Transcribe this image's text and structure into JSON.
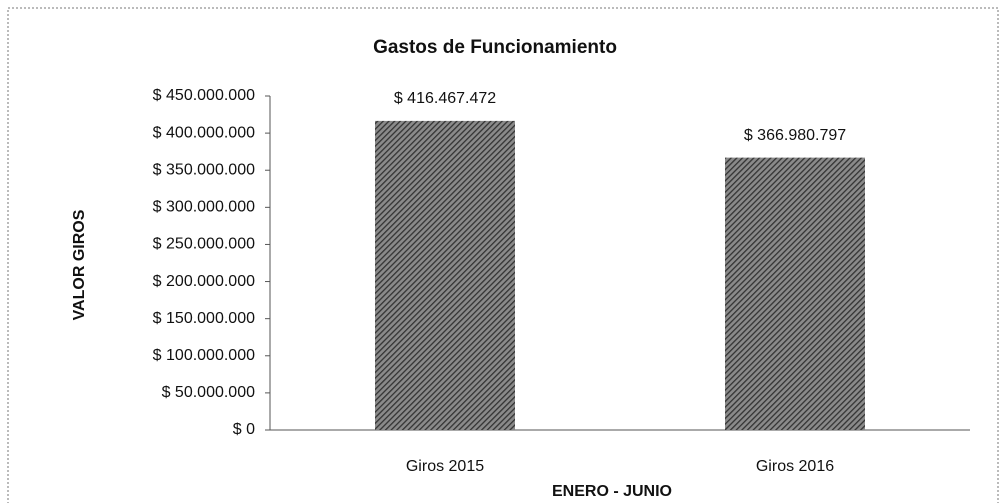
{
  "chart_data": {
    "type": "bar",
    "title": "Gastos de Funcionamiento",
    "x_label": "ENERO - JUNIO",
    "y_label": "VALOR GIROS",
    "categories": [
      "Giros 2015",
      "Giros 2016"
    ],
    "values": [
      416467472,
      366980797
    ],
    "value_labels": [
      "$ 416.467.472",
      "$ 366.980.797"
    ],
    "color": "#333333",
    "ylim": [
      0,
      450000000
    ],
    "yticks": [
      {
        "value": 0,
        "label": "$ 0"
      },
      {
        "value": 50000000,
        "label": "$ 50.000.000"
      },
      {
        "value": 100000000,
        "label": "$ 100.000.000"
      },
      {
        "value": 150000000,
        "label": "$ 150.000.000"
      },
      {
        "value": 200000000,
        "label": "$ 200.000.000"
      },
      {
        "value": 250000000,
        "label": "$ 250.000.000"
      },
      {
        "value": 300000000,
        "label": "$ 300.000.000"
      },
      {
        "value": 350000000,
        "label": "$ 350.000.000"
      },
      {
        "value": 400000000,
        "label": "$ 400.000.000"
      },
      {
        "value": 450000000,
        "label": "$ 450.000.000"
      }
    ],
    "grid": false
  }
}
